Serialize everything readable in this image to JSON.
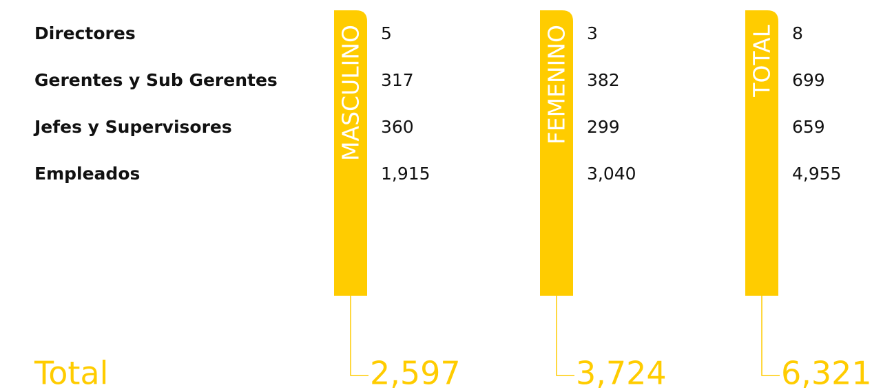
{
  "rows": [
    "Directores",
    "Gerentes y Sub Gerentes",
    "Jefes y Supervisores",
    "Empleados"
  ],
  "columns": [
    {
      "header": "MASCULINO",
      "values": [
        "5",
        "317",
        "360",
        "1,915"
      ],
      "total": "2,597"
    },
    {
      "header": "FEMENINO",
      "values": [
        "3",
        "382",
        "299",
        "3,040"
      ],
      "total": "3,724"
    },
    {
      "header": "TOTAL",
      "values": [
        "8",
        "699",
        "659",
        "4,955"
      ],
      "total": "6,321"
    }
  ],
  "total_label": "Total"
}
